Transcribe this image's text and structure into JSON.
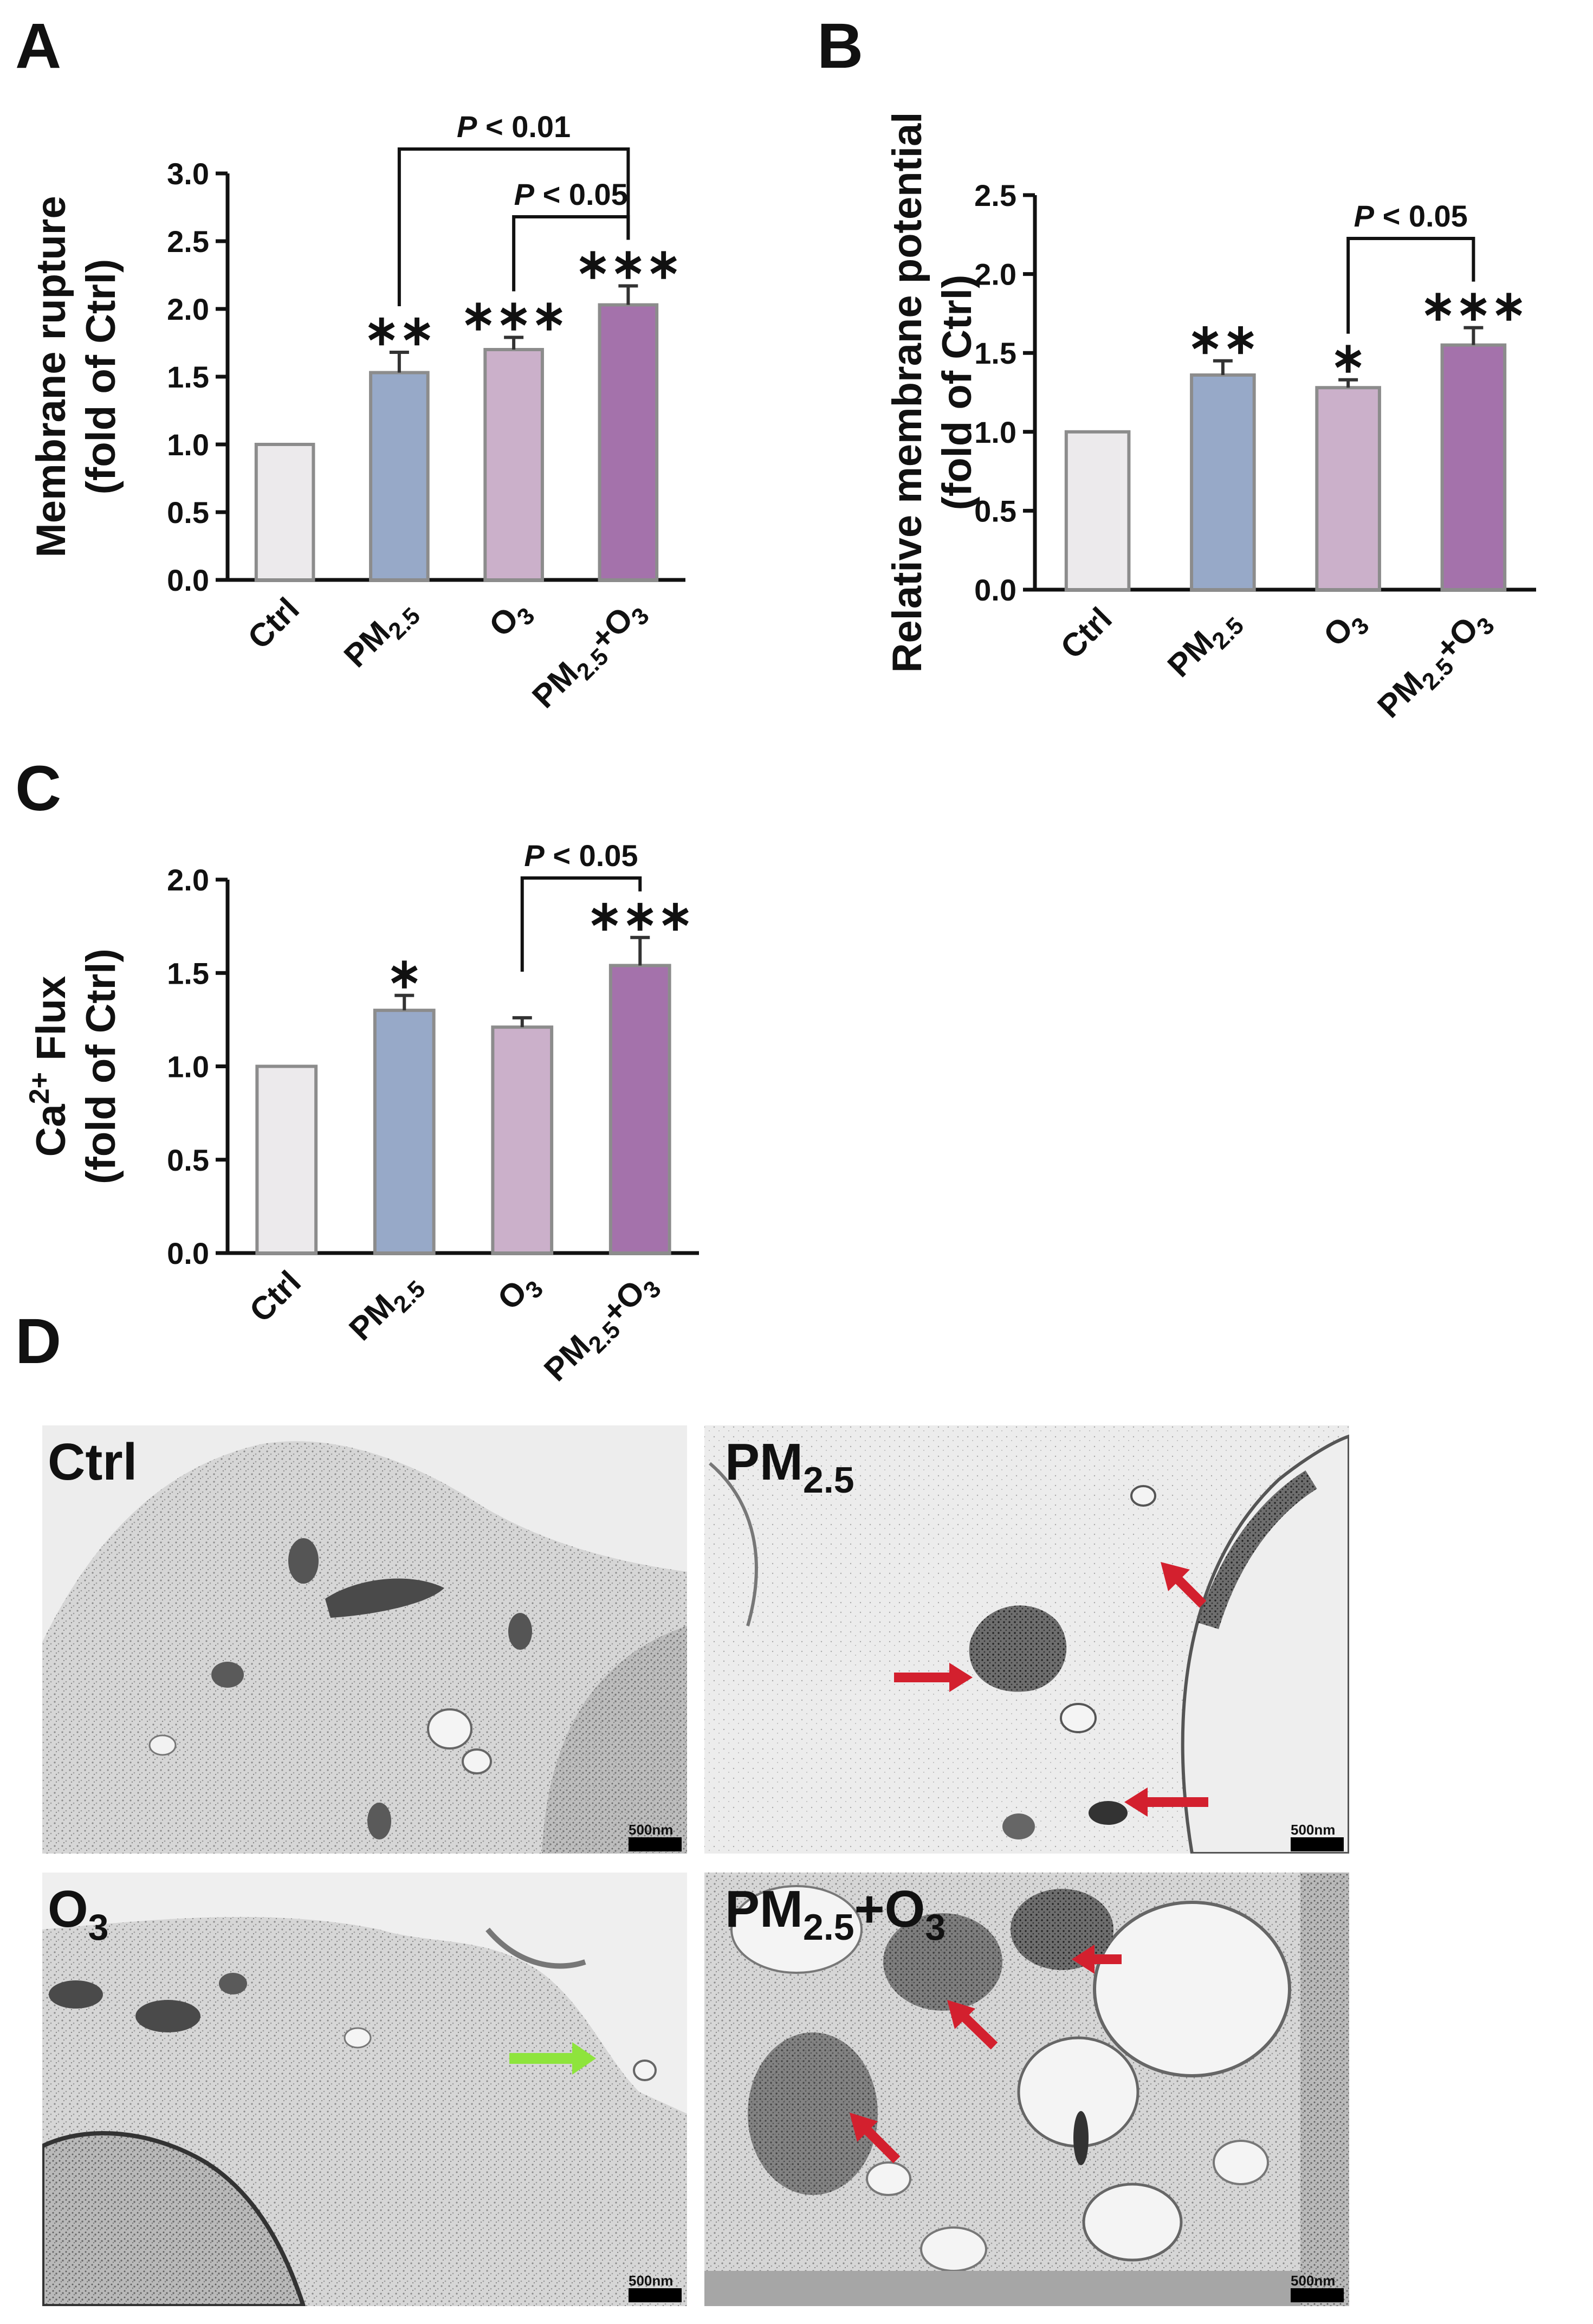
{
  "panels": {
    "A": "A",
    "B": "B",
    "C": "C",
    "D": "D"
  },
  "colors": {
    "ctrl": "#ECEAEC",
    "pm25": "#97A9C8",
    "o3": "#CBB0CA",
    "combo": "#A472AB",
    "bar_edge": "#8C8C8C",
    "red_arrow": "#D3202E",
    "green_arrow": "#8EE43C"
  },
  "categories": [
    {
      "main": "Ctrl",
      "sub": "",
      "mid": "",
      "sub2": ""
    },
    {
      "main": "PM",
      "sub": "2.5",
      "mid": "",
      "sub2": ""
    },
    {
      "main": "O",
      "sub": "3",
      "mid": "",
      "sub2": ""
    },
    {
      "main": "PM",
      "sub": "2.5",
      "mid": "+O",
      "sub2": "3"
    }
  ],
  "chart_data": [
    {
      "panel": "A",
      "type": "bar",
      "categories": [
        "Ctrl",
        "PM2.5",
        "O3",
        "PM2.5+O3"
      ],
      "values": [
        1.0,
        1.53,
        1.7,
        2.03
      ],
      "errors": [
        0,
        0.15,
        0.09,
        0.14
      ],
      "significance": [
        "",
        "**",
        "***",
        "***"
      ],
      "ylabel_line1": "Membrane rupture",
      "ylabel_line2": "(fold of Ctrl)",
      "ylim": [
        0,
        3.0
      ],
      "yticks": [
        "0.0",
        "0.5",
        "1.0",
        "1.5",
        "2.0",
        "2.5",
        "3.0"
      ],
      "brackets": [
        {
          "from": 1,
          "to": 3,
          "label": "P < 0.01"
        },
        {
          "from": 2,
          "to": 3,
          "label": "P < 0.05"
        }
      ]
    },
    {
      "panel": "B",
      "type": "bar",
      "categories": [
        "Ctrl",
        "PM2.5",
        "O3",
        "PM2.5+O3"
      ],
      "values": [
        1.0,
        1.36,
        1.28,
        1.55
      ],
      "errors": [
        0,
        0.09,
        0.05,
        0.11
      ],
      "significance": [
        "",
        "**",
        "*",
        "***"
      ],
      "ylabel_line1": "Relative membrane potential",
      "ylabel_line2": "(fold of Ctrl)",
      "ylim": [
        0,
        2.5
      ],
      "yticks": [
        "0.0",
        "0.5",
        "1.0",
        "1.5",
        "2.0",
        "2.5"
      ],
      "brackets": [
        {
          "from": 2,
          "to": 3,
          "label": "P < 0.05"
        }
      ]
    },
    {
      "panel": "C",
      "type": "bar",
      "categories": [
        "Ctrl",
        "PM2.5",
        "O3",
        "PM2.5+O3"
      ],
      "values": [
        1.0,
        1.3,
        1.21,
        1.54
      ],
      "errors": [
        0,
        0.08,
        0.05,
        0.15
      ],
      "significance": [
        "",
        "*",
        "",
        "***"
      ],
      "ylabel_line1": "Ca2+ Flux",
      "ylabel_line2": "(fold of Ctrl)",
      "ylim": [
        0,
        2.0
      ],
      "yticks": [
        "0.0",
        "0.5",
        "1.0",
        "1.5",
        "2.0"
      ],
      "brackets": [
        {
          "from": 2,
          "to": 3,
          "label": "P < 0.05"
        }
      ]
    }
  ],
  "ca_label": {
    "base": "Ca",
    "sup": "2+",
    "rest": " Flux"
  },
  "p_label": {
    "p": "P",
    "rest": " < 0.01",
    "rest05": " < 0.05"
  },
  "tem": [
    {
      "label_main": "Ctrl",
      "label_sub": "",
      "label_mid": "",
      "label_sub2": "",
      "scale": "500nm",
      "arrows": "none"
    },
    {
      "label_main": "PM",
      "label_sub": "2.5",
      "label_mid": "",
      "label_sub2": "",
      "scale": "500nm",
      "arrows": "red"
    },
    {
      "label_main": "O",
      "label_sub": "3",
      "label_mid": "",
      "label_sub2": "",
      "scale": "500nm",
      "arrows": "green"
    },
    {
      "label_main": "PM",
      "label_sub": "2.5",
      "label_mid": "+O",
      "label_sub2": "3",
      "scale": "500nm",
      "arrows": "red"
    }
  ]
}
